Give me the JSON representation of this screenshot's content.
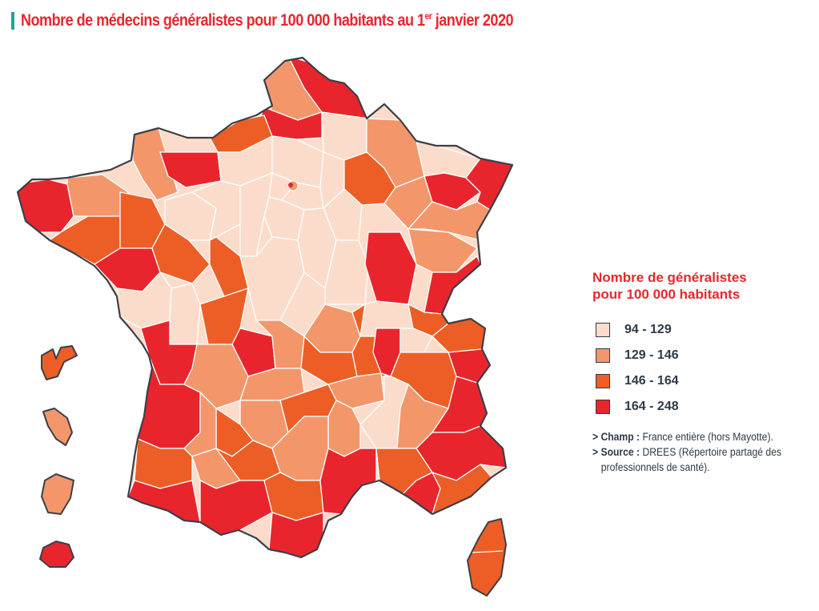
{
  "title": {
    "main": "Nombre de médecins généralistes pour 100 000 habitants au 1",
    "sup": "er",
    "end": " janvier 2020"
  },
  "colors": {
    "c1": "#fbdccb",
    "c2": "#f3976b",
    "c3": "#ec5e26",
    "c4": "#e8252d",
    "border": "#3c3f48",
    "accent": "#1aa59a",
    "title": "#e8262e"
  },
  "legend": {
    "title_line1": "Nombre de généralistes",
    "title_line2": "pour 100 000 habitants",
    "items": [
      {
        "label": "94 - 129",
        "color": "#fbdccb"
      },
      {
        "label": "129 - 146",
        "color": "#f3976b"
      },
      {
        "label": "146 - 164",
        "color": "#ec5e26"
      },
      {
        "label": "164 - 248",
        "color": "#e8252d"
      }
    ]
  },
  "notes": {
    "champ_label": "> Champ :",
    "champ_text": " France entière (hors Mayotte).",
    "source_label": "> Source :",
    "source_text": " DREES (Répertoire partagé des",
    "source_text2": "professionnels de santé)."
  }
}
